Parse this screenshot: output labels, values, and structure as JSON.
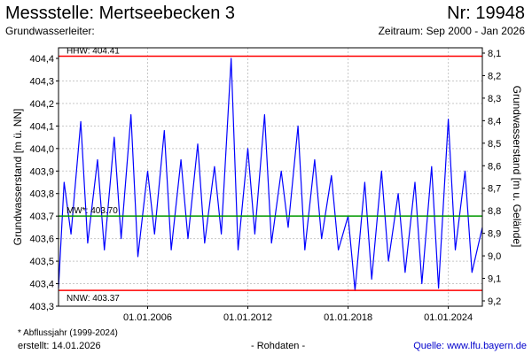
{
  "header": {
    "title": "Messstelle: Mertseebecken 3",
    "station_number": "Nr: 19948",
    "aquifer_label": "Grundwasserleiter:",
    "period": "Zeitraum: Sep 2000 - Jan 2026"
  },
  "footer": {
    "footnote": "* Abflussjahr (1999-2024)",
    "created": "erstellt:  14.01.2026",
    "raw_data": "- Rohdaten -",
    "source": "Quelle: www.lfu.bayern.de"
  },
  "colors": {
    "series": "#0000ff",
    "extreme_lines": "#ff0000",
    "mean_line": "#009900",
    "grid": "#c8c8c8"
  },
  "chart_data": {
    "type": "line",
    "ylabel_left": "Grundwasserstand [m ü. NN]",
    "ylabel_right": "Grundwasserstand [m u. Gelände]",
    "xlim": [
      "2000-09-01",
      "2026-01-14"
    ],
    "ylim": [
      403.3,
      404.4
    ],
    "ylim_right": [
      9.2,
      8.1
    ],
    "y_ticks_left": [
      "404,4",
      "404,3",
      "404,2",
      "404,1",
      "404,0",
      "403,9",
      "403,8",
      "403,7",
      "403,6",
      "403,5",
      "403,4",
      "403,3"
    ],
    "y_ticks_right": [
      "8,1",
      "8,2",
      "8,3",
      "8,4",
      "8,5",
      "8,6",
      "8,7",
      "8,8",
      "8,9",
      "9,0",
      "9,1",
      "9,2"
    ],
    "x_ticks": [
      {
        "date": "2006-01-01",
        "label": "01.01.2006"
      },
      {
        "date": "2012-01-01",
        "label": "01.01.2012"
      },
      {
        "date": "2018-01-01",
        "label": "01.01.2018"
      },
      {
        "date": "2024-01-01",
        "label": "01.01.2024"
      }
    ],
    "reference_lines": [
      {
        "label": "HHW: 404.41",
        "value": 404.41,
        "color": "#ff0000"
      },
      {
        "label": "MW*: 403.70",
        "value": 403.7,
        "color": "#009900"
      },
      {
        "label": "NNW: 403.37",
        "value": 403.37,
        "color": "#ff0000"
      }
    ],
    "grid": true,
    "series": [
      {
        "x": [
          "2000-09-01",
          "2001-01-01",
          "2001-06-01",
          "2002-01-01",
          "2002-06-01",
          "2003-01-01",
          "2003-06-01",
          "2004-01-01",
          "2004-06-01",
          "2005-01-01",
          "2005-06-01",
          "2006-01-01",
          "2006-06-01",
          "2007-01-01",
          "2007-06-01",
          "2008-01-01",
          "2008-06-01",
          "2009-01-01",
          "2009-06-01",
          "2010-01-01",
          "2010-06-01",
          "2011-01-01",
          "2011-06-01",
          "2012-01-01",
          "2012-06-01",
          "2013-01-01",
          "2013-06-01",
          "2014-01-01",
          "2014-06-01",
          "2015-01-01",
          "2015-06-01",
          "2016-01-01",
          "2016-06-01",
          "2017-01-01",
          "2017-06-01",
          "2018-01-01",
          "2018-06-01",
          "2019-01-01",
          "2019-06-01",
          "2020-01-01",
          "2020-06-01",
          "2021-01-01",
          "2021-06-01",
          "2022-01-01",
          "2022-06-01",
          "2023-01-01",
          "2023-06-01",
          "2024-01-01",
          "2024-06-01",
          "2025-01-01",
          "2025-06-01",
          "2026-01-14"
        ],
        "values": [
          403.38,
          403.85,
          403.62,
          404.12,
          403.58,
          403.95,
          403.55,
          404.05,
          403.6,
          404.15,
          403.52,
          403.9,
          403.62,
          404.08,
          403.55,
          403.95,
          403.6,
          404.02,
          403.58,
          403.92,
          403.62,
          404.4,
          403.55,
          404.0,
          403.62,
          404.15,
          403.58,
          403.9,
          403.65,
          404.1,
          403.55,
          403.95,
          403.6,
          403.88,
          403.55,
          403.7,
          403.37,
          403.85,
          403.42,
          403.9,
          403.5,
          403.8,
          403.45,
          403.85,
          403.4,
          403.92,
          403.38,
          404.13,
          403.55,
          403.9,
          403.45,
          403.65
        ]
      }
    ]
  }
}
